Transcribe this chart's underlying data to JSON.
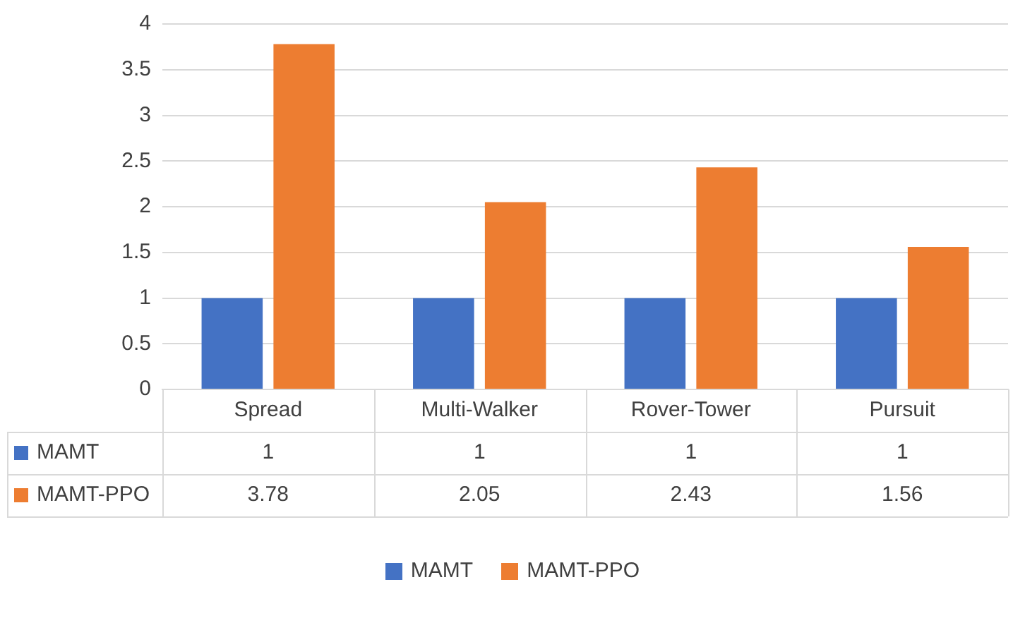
{
  "chart_data": {
    "type": "bar",
    "categories": [
      "Spread",
      "Multi-Walker",
      "Rover-Tower",
      "Pursuit"
    ],
    "series": [
      {
        "name": "MAMT",
        "color": "#4472c4",
        "values": [
          1,
          1,
          1,
          1
        ]
      },
      {
        "name": "MAMT-PPO",
        "color": "#ed7d31",
        "values": [
          3.78,
          2.05,
          2.43,
          1.56
        ]
      }
    ],
    "ylim": [
      0,
      4
    ],
    "yticks": [
      0,
      0.5,
      1,
      1.5,
      2,
      2.5,
      3,
      3.5,
      4
    ],
    "grid": "y",
    "legend": "bottom",
    "data_labels": true
  }
}
